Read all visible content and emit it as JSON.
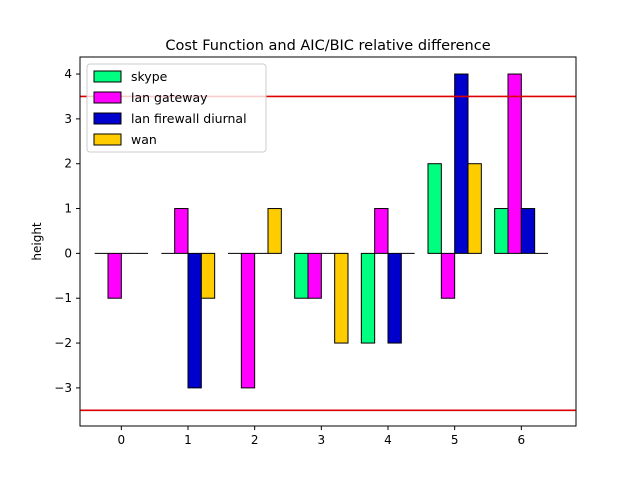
{
  "chart_data": {
    "type": "bar",
    "title": "Cost Function and AIC/BIC relative difference",
    "xlabel": "",
    "ylabel": "height",
    "categories": [
      "0",
      "1",
      "2",
      "3",
      "4",
      "5",
      "6"
    ],
    "series": [
      {
        "name": "skype",
        "color": "#00ff80",
        "values": [
          0,
          0,
          0,
          -1,
          -2,
          2,
          1
        ]
      },
      {
        "name": "lan gateway",
        "color": "#ff00ff",
        "values": [
          -1,
          1,
          -3,
          -1,
          1,
          -1,
          4
        ]
      },
      {
        "name": "lan firewall diurnal",
        "color": "#0000cc",
        "values": [
          0,
          -3,
          0,
          0,
          -2,
          4,
          1
        ]
      },
      {
        "name": "wan",
        "color": "#ffcc00",
        "values": [
          0,
          -1,
          1,
          -2,
          0,
          2,
          0
        ]
      }
    ],
    "xlim": [
      -0.62,
      6.82
    ],
    "ylim": [
      -3.85,
      4.38
    ],
    "yticks": [
      -3,
      -2,
      -1,
      0,
      1,
      2,
      3,
      4
    ],
    "threshold_lines": [
      3.5,
      -3.5
    ],
    "threshold_color": "#dd0000",
    "legend_position": "top-left",
    "grid": false
  }
}
